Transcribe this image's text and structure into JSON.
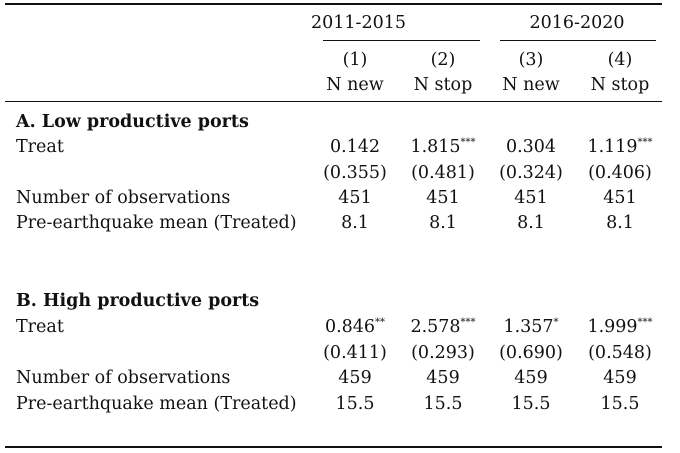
{
  "group_headers": [
    "2011-2015",
    "2016-2020"
  ],
  "column_numbers": [
    "(1)",
    "(2)",
    "(3)",
    "(4)"
  ],
  "column_labels": [
    "N new",
    "N stop",
    "N new",
    "N stop"
  ],
  "panels": [
    {
      "title": "A. Low productive ports",
      "rows": [
        {
          "label": "Treat",
          "values": [
            {
              "v": "0.142",
              "s": ""
            },
            {
              "v": "1.815",
              "s": "***"
            },
            {
              "v": "0.304",
              "s": ""
            },
            {
              "v": "1.119",
              "s": "***"
            }
          ]
        },
        {
          "label": "",
          "values": [
            {
              "v": "(0.355)",
              "s": ""
            },
            {
              "v": "(0.481)",
              "s": ""
            },
            {
              "v": "(0.324)",
              "s": ""
            },
            {
              "v": "(0.406)",
              "s": ""
            }
          ]
        },
        {
          "label": "Number of observations",
          "values": [
            {
              "v": "451",
              "s": ""
            },
            {
              "v": "451",
              "s": ""
            },
            {
              "v": "451",
              "s": ""
            },
            {
              "v": "451",
              "s": ""
            }
          ]
        },
        {
          "label": "Pre-earthquake mean (Treated)",
          "values": [
            {
              "v": "8.1",
              "s": ""
            },
            {
              "v": "8.1",
              "s": ""
            },
            {
              "v": "8.1",
              "s": ""
            },
            {
              "v": "8.1",
              "s": ""
            }
          ]
        }
      ]
    },
    {
      "title": "B. High productive ports",
      "rows": [
        {
          "label": "Treat",
          "values": [
            {
              "v": "0.846",
              "s": "**"
            },
            {
              "v": "2.578",
              "s": "***"
            },
            {
              "v": "1.357",
              "s": "*"
            },
            {
              "v": "1.999",
              "s": "***"
            }
          ]
        },
        {
          "label": "",
          "values": [
            {
              "v": "(0.411)",
              "s": ""
            },
            {
              "v": "(0.293)",
              "s": ""
            },
            {
              "v": "(0.690)",
              "s": ""
            },
            {
              "v": "(0.548)",
              "s": ""
            }
          ]
        },
        {
          "label": "Number of observations",
          "values": [
            {
              "v": "459",
              "s": ""
            },
            {
              "v": "459",
              "s": ""
            },
            {
              "v": "459",
              "s": ""
            },
            {
              "v": "459",
              "s": ""
            }
          ]
        },
        {
          "label": "Pre-earthquake mean (Treated)",
          "values": [
            {
              "v": "15.5",
              "s": ""
            },
            {
              "v": "15.5",
              "s": ""
            },
            {
              "v": "15.5",
              "s": ""
            },
            {
              "v": "15.5",
              "s": ""
            }
          ]
        }
      ]
    }
  ]
}
